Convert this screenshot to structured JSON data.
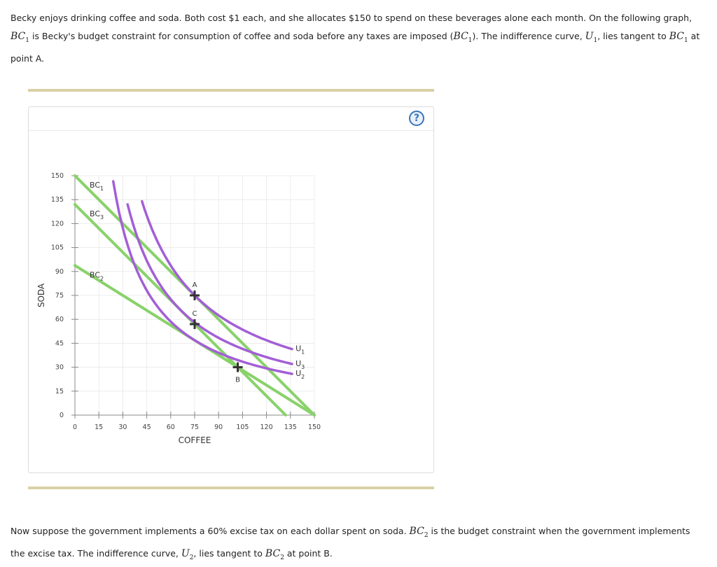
{
  "intro": {
    "t1": "Becky enjoys drinking coffee and soda. Both cost $1 each, and she allocates $150 to spend on these beverages alone each month. On the following graph, ",
    "m1": "BC",
    "m1s": "1",
    "t2": " is Becky's budget constraint for consumption of coffee and soda before any taxes are imposed (",
    "m2": "BC",
    "m2s": "1",
    "t3": "). The indifference curve, ",
    "m3": "U",
    "m3s": "1",
    "t4": ", lies tangent to ",
    "m4": "BC",
    "m4s": "1",
    "t5": " at point A."
  },
  "outro": {
    "t1": "Now suppose the government implements a 60% excise tax on each dollar spent on soda. ",
    "m1": "BC",
    "m1s": "2",
    "t2": " is the budget constraint when the government implements the excise tax. The indifference curve, ",
    "m2": "U",
    "m2s": "2",
    "t3": ", lies tangent to ",
    "m3": "BC",
    "m3s": "2",
    "t4": " at point B."
  },
  "help_label": "?",
  "chart_data": {
    "type": "line",
    "xlabel": "COFFEE",
    "ylabel": "SODA",
    "xlim": [
      0,
      150
    ],
    "ylim": [
      0,
      150
    ],
    "x_ticks": [
      0,
      15,
      30,
      45,
      60,
      75,
      90,
      105,
      120,
      135,
      150
    ],
    "y_ticks": [
      0,
      15,
      30,
      45,
      60,
      75,
      90,
      105,
      120,
      135,
      150
    ],
    "grid": true,
    "colors": {
      "budget": "#88d26a",
      "indifference": "#a35fd6",
      "grid": "#ececec",
      "axis": "#888888",
      "marker": "#333333"
    },
    "budget_lines": [
      {
        "label": "BC",
        "sub": "1",
        "points": [
          [
            0,
            150
          ],
          [
            150,
            0
          ]
        ]
      },
      {
        "label": "BC",
        "sub": "2",
        "points": [
          [
            0,
            93.75
          ],
          [
            150,
            0
          ]
        ]
      },
      {
        "label": "BC",
        "sub": "3",
        "points": [
          [
            0,
            132
          ],
          [
            132,
            0
          ]
        ]
      }
    ],
    "indifference_curves": [
      {
        "label": "U",
        "sub": "1",
        "k": 5625,
        "x_range": [
          42,
          136
        ]
      },
      {
        "label": "U",
        "sub": "2",
        "k": 3515.6,
        "x_range": [
          24,
          136
        ]
      },
      {
        "label": "U",
        "sub": "3",
        "k": 4356,
        "x_range": [
          33,
          136
        ]
      }
    ],
    "points": [
      {
        "label": "A",
        "x": 75,
        "y": 75
      },
      {
        "label": "C",
        "x": 75,
        "y": 57
      },
      {
        "label": "B",
        "x": 102,
        "y": 30
      }
    ]
  }
}
